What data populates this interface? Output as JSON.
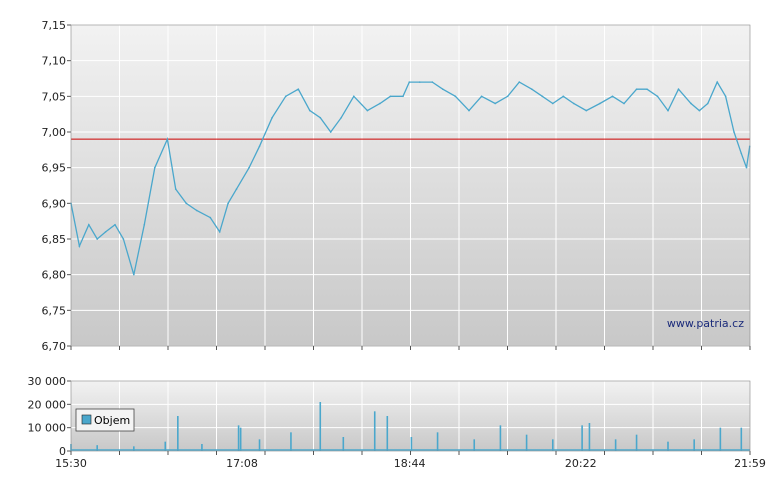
{
  "watermark": "www.patria.cz",
  "chart_data": [
    {
      "type": "line",
      "panel": "price",
      "ylim": [
        6.7,
        7.15
      ],
      "yticks": [
        "6,70",
        "6,75",
        "6,80",
        "6,85",
        "6,90",
        "6,95",
        "7,00",
        "7,05",
        "7,10",
        "7,15"
      ],
      "reference_line": 6.99,
      "x_hours": [
        15.5,
        15.58,
        15.67,
        15.75,
        15.83,
        15.92,
        16.0,
        16.1,
        16.2,
        16.3,
        16.42,
        16.5,
        16.6,
        16.7,
        16.83,
        16.92,
        17.0,
        17.08,
        17.2,
        17.3,
        17.42,
        17.55,
        17.67,
        17.78,
        17.88,
        17.98,
        18.08,
        18.2,
        18.33,
        18.45,
        18.55,
        18.67,
        18.73,
        18.83,
        18.95,
        19.05,
        19.17,
        19.3,
        19.42,
        19.55,
        19.67,
        19.78,
        19.9,
        20.0,
        20.1,
        20.2,
        20.3,
        20.42,
        20.55,
        20.67,
        20.78,
        20.9,
        21.0,
        21.1,
        21.2,
        21.3,
        21.42,
        21.5,
        21.58,
        21.67,
        21.75,
        21.83,
        21.9,
        21.95,
        21.98
      ],
      "values": [
        6.9,
        6.84,
        6.87,
        6.85,
        6.86,
        6.87,
        6.85,
        6.8,
        6.87,
        6.95,
        6.99,
        6.92,
        6.9,
        6.89,
        6.88,
        6.86,
        6.9,
        6.92,
        6.95,
        6.98,
        7.02,
        7.05,
        7.06,
        7.03,
        7.02,
        7.0,
        7.02,
        7.05,
        7.03,
        7.04,
        7.05,
        7.05,
        7.07,
        7.07,
        7.07,
        7.06,
        7.05,
        7.03,
        7.05,
        7.04,
        7.05,
        7.07,
        7.06,
        7.05,
        7.04,
        7.05,
        7.04,
        7.03,
        7.04,
        7.05,
        7.04,
        7.06,
        7.06,
        7.05,
        7.03,
        7.06,
        7.04,
        7.03,
        7.04,
        7.07,
        7.05,
        7.0,
        6.97,
        6.95,
        6.98
      ],
      "color": "#4aa7cc",
      "reference_color": "#cc0000"
    },
    {
      "type": "bar",
      "panel": "volume",
      "ylim": [
        0,
        30000
      ],
      "yticks": [
        "0",
        "10 000",
        "20 000",
        "30 000"
      ],
      "series": [
        {
          "name": "Objem"
        }
      ],
      "x_hours": [
        15.5,
        15.75,
        16.1,
        16.4,
        16.52,
        16.75,
        17.1,
        17.12,
        17.3,
        17.6,
        17.88,
        18.1,
        18.4,
        18.52,
        18.75,
        19.0,
        19.35,
        19.6,
        19.85,
        20.1,
        20.38,
        20.45,
        20.7,
        20.9,
        21.2,
        21.45,
        21.7,
        21.9
      ],
      "values": [
        3000,
        2500,
        2000,
        4000,
        15000,
        3000,
        11000,
        10000,
        5000,
        8000,
        21000,
        6000,
        17000,
        15000,
        6000,
        8000,
        5000,
        11000,
        7000,
        5000,
        11000,
        12000,
        5000,
        7000,
        4000,
        5000,
        10000,
        10000
      ],
      "color": "#4aa7cc",
      "xticks": [
        "15:30",
        "17:08",
        "18:44",
        "20:22",
        "21:59"
      ],
      "xtick_hours": [
        15.5,
        17.133,
        18.733,
        20.367,
        21.983
      ]
    }
  ]
}
